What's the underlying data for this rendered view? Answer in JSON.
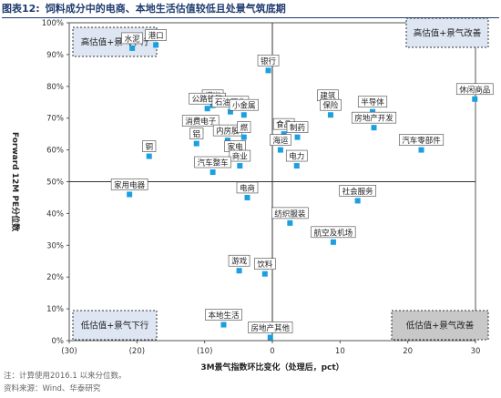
{
  "figure": {
    "number": "图表12:",
    "title": "饲料成分中的电商、本地生活估值较低且处景气筑底期"
  },
  "footnotes": [
    "注：计算使用2016.1 以来分位数。",
    "资料来源：Wind、华泰研究"
  ],
  "colors": {
    "point": "#1aa0e0",
    "box_fill": "#dde6f2",
    "box_fill_dark": "#c8c8c8"
  },
  "chart_data": {
    "type": "scatter",
    "xlabel": "3M景气指数环比变化（处理后，pct）",
    "ylabel": "Forward 12M PE分位数",
    "xlim": [
      -30,
      30
    ],
    "ylim": [
      0,
      100
    ],
    "x_ticks": [
      "(30)",
      "(20)",
      "(10)",
      "0",
      "10",
      "20",
      "30"
    ],
    "y_ticks": [
      "0%",
      "10%",
      "20%",
      "30%",
      "40%",
      "50%",
      "60%",
      "70%",
      "80%",
      "90%",
      "100%"
    ],
    "reference_lines": {
      "x": 0,
      "y": 50
    },
    "quadrants": [
      {
        "label": "高估值+景气下行",
        "position": "top-left"
      },
      {
        "label": "高估值+景气改善",
        "position": "top-right"
      },
      {
        "label": "低估值+景气下行",
        "position": "bottom-left"
      },
      {
        "label": "低估值+景气改善",
        "position": "bottom-right"
      }
    ],
    "points": [
      {
        "label": "水泥",
        "x": -20.7,
        "y": 92
      },
      {
        "label": "港口",
        "x": -17.2,
        "y": 93
      },
      {
        "label": "银行",
        "x": -0.6,
        "y": 85
      },
      {
        "label": "休闲商品",
        "x": 29.9,
        "y": 76
      },
      {
        "label": "建筑",
        "x": 8.2,
        "y": 74
      },
      {
        "label": "半导体",
        "x": 14.8,
        "y": 72
      },
      {
        "label": "保险",
        "x": 8.6,
        "y": 71
      },
      {
        "label": "煤炭",
        "x": -8.8,
        "y": 74
      },
      {
        "label": "公路铁路",
        "x": -9.6,
        "y": 73
      },
      {
        "label": "石油石化",
        "x": -6.2,
        "y": 72
      },
      {
        "label": "小金属",
        "x": -4.2,
        "y": 71
      },
      {
        "label": "消费电子",
        "x": -10.6,
        "y": 66
      },
      {
        "label": "铝",
        "x": -11.2,
        "y": 62
      },
      {
        "label": "内房股",
        "x": -6.6,
        "y": 63
      },
      {
        "label": "燃",
        "x": -4.2,
        "y": 64
      },
      {
        "label": "食品",
        "x": 1.7,
        "y": 65
      },
      {
        "label": "制药",
        "x": 3.7,
        "y": 64
      },
      {
        "label": "房地产开发",
        "x": 15.0,
        "y": 67
      },
      {
        "label": "汽车零部件",
        "x": 22.0,
        "y": 60
      },
      {
        "label": "海运",
        "x": 1.2,
        "y": 60
      },
      {
        "label": "电力",
        "x": 3.6,
        "y": 55
      },
      {
        "label": "铜",
        "x": -18.2,
        "y": 58
      },
      {
        "label": "家电",
        "x": -5.5,
        "y": 58
      },
      {
        "label": "商业",
        "x": -4.8,
        "y": 55
      },
      {
        "label": "汽车整车",
        "x": -8.8,
        "y": 53
      },
      {
        "label": "家用电器",
        "x": -21.1,
        "y": 46
      },
      {
        "label": "电商",
        "x": -3.7,
        "y": 45
      },
      {
        "label": "社会服务",
        "x": 12.6,
        "y": 44
      },
      {
        "label": "纺织服装",
        "x": 2.6,
        "y": 37
      },
      {
        "label": "航空及机场",
        "x": 9.0,
        "y": 31
      },
      {
        "label": "游戏",
        "x": -4.9,
        "y": 22
      },
      {
        "label": "饮料",
        "x": -1.1,
        "y": 21
      },
      {
        "label": "本地生活",
        "x": -7.2,
        "y": 5
      },
      {
        "label": "房地产其他",
        "x": -0.3,
        "y": 1
      }
    ]
  }
}
